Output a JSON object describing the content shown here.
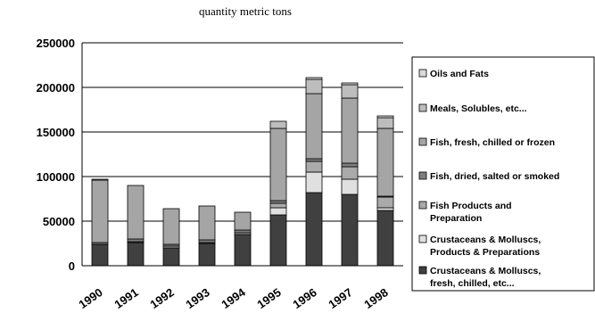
{
  "chart_data": {
    "type": "bar",
    "stacked": true,
    "title": "quantity metric tons",
    "xlabel": "",
    "ylabel": "",
    "ylim": [
      0,
      250000
    ],
    "yticks": [
      "0",
      "50000",
      "100000",
      "150000",
      "200000",
      "250000"
    ],
    "grid": true,
    "legend_position": "right",
    "categories": [
      "1990",
      "1991",
      "1992",
      "1993",
      "1994",
      "1995",
      "1996",
      "1997",
      "1998"
    ],
    "series": [
      {
        "name": "Crustaceans & Molluscs, fresh, chilled, etc...",
        "color": "#404040",
        "values": [
          24000,
          26000,
          20000,
          25000,
          35000,
          57000,
          82000,
          80000,
          62000
        ]
      },
      {
        "name": "Crustaceans & Molluscs, Products & Preparations",
        "color": "#e0e0e0",
        "values": [
          0,
          0,
          0,
          0,
          0,
          8000,
          23000,
          17000,
          3000
        ]
      },
      {
        "name": "Fish Products and Preparation",
        "color": "#aaaaaa",
        "values": [
          0,
          1000,
          2000,
          1000,
          2000,
          5000,
          12000,
          14000,
          12000
        ]
      },
      {
        "name": "Fish, dried, salted or smoked",
        "color": "#7f7f7f",
        "values": [
          2000,
          3000,
          2000,
          3000,
          3000,
          3000,
          3000,
          4000,
          1000
        ]
      },
      {
        "name": "Fish, fresh, chilled or frozen",
        "color": "#a5a5a5",
        "values": [
          70000,
          60000,
          40000,
          38000,
          20000,
          81000,
          73000,
          73000,
          76000
        ]
      },
      {
        "name": "Meals, Solubles, etc...",
        "color": "#bdbdbd",
        "values": [
          1000,
          0,
          0,
          0,
          0,
          8000,
          16000,
          15000,
          12000
        ]
      },
      {
        "name": "Oils and Fats",
        "color": "#d9d9d9",
        "values": [
          0,
          0,
          0,
          0,
          0,
          0,
          2000,
          2000,
          2000
        ]
      }
    ]
  }
}
